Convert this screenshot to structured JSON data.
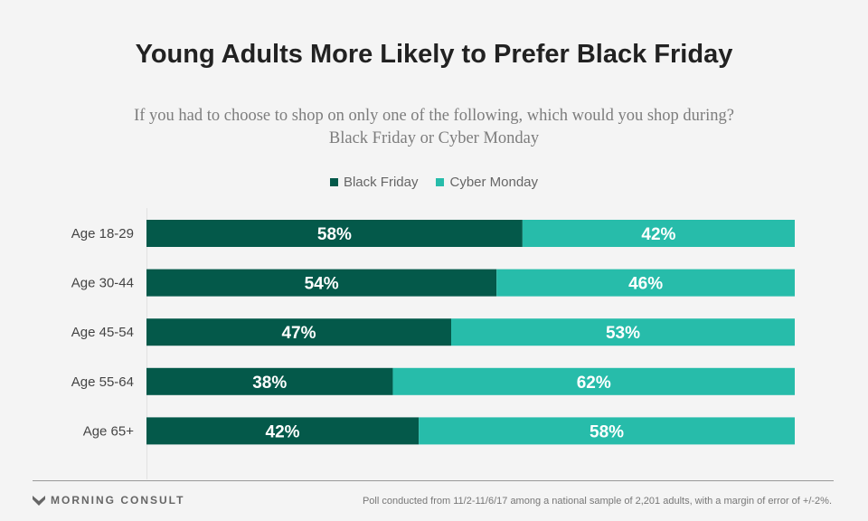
{
  "header": {
    "title": "Young Adults More Likely to Prefer Black Friday",
    "subtitle_line1": "If you had to choose to shop on only one of the following, which would you shop during?",
    "subtitle_line2": "Black Friday or Cyber Monday"
  },
  "colors": {
    "black_friday": "#04594a",
    "cyber_monday": "#27bcaa"
  },
  "chart_data": {
    "type": "bar",
    "orientation": "horizontal",
    "stacked": true,
    "title": "Young Adults More Likely to Prefer Black Friday",
    "subtitle": "If you had to choose to shop on only one of the following, which would you shop during? Black Friday or Cyber Monday",
    "categories": [
      "Age 18-29",
      "Age 30-44",
      "Age 45-54",
      "Age 55-64",
      "Age 65+"
    ],
    "series": [
      {
        "name": "Black Friday",
        "values": [
          58,
          54,
          47,
          38,
          42
        ],
        "labels": [
          "58%",
          "54%",
          "47%",
          "38%",
          "42%"
        ]
      },
      {
        "name": "Cyber Monday",
        "values": [
          42,
          46,
          53,
          62,
          58
        ],
        "labels": [
          "42%",
          "46%",
          "53%",
          "62%",
          "58%"
        ]
      }
    ],
    "xlim": [
      0,
      100
    ],
    "legend": "top-center",
    "grid": false
  },
  "footer": {
    "brand": "MORNING CONSULT",
    "note": "Poll conducted from 11/2-11/6/17 among a national sample of 2,201 adults, with a margin of error of +/-2%."
  }
}
